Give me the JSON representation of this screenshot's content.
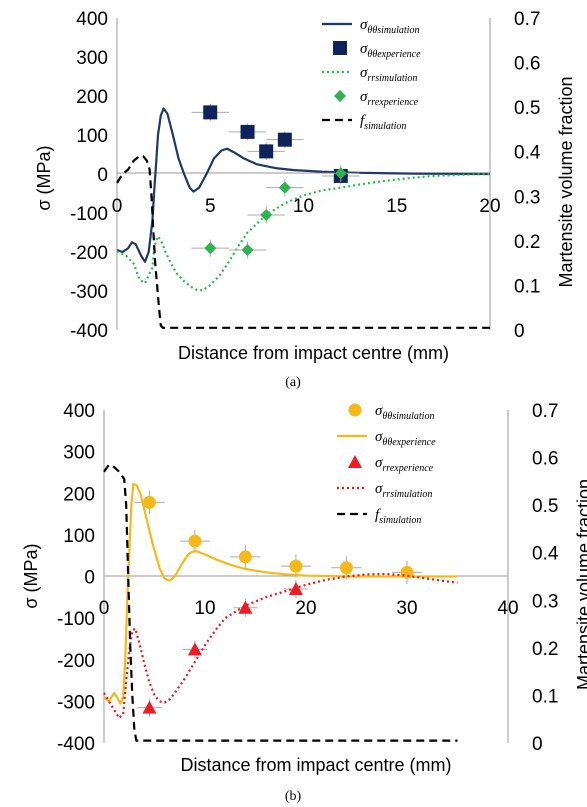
{
  "chart_data": [
    {
      "panel": "(a)",
      "type": "line",
      "xlabel": "Distance from impact centre (mm)",
      "ylabel_left": "σ (MPa)",
      "ylabel_right": "Martensite volume fraction",
      "xlim": [
        0,
        20
      ],
      "ylim_left": [
        -400,
        400
      ],
      "ylim_right": [
        0,
        0.7
      ],
      "x_ticks": [
        0,
        5,
        10,
        15,
        20
      ],
      "y_ticks_left": [
        400,
        300,
        200,
        100,
        0,
        -100,
        -200,
        -300,
        -400
      ],
      "y_ticks_right": [
        0.7,
        0.6,
        0.5,
        0.4,
        0.3,
        0.2,
        0.1,
        0
      ],
      "legend_position": "top-right",
      "series": [
        {
          "name_main": "σ",
          "name_sub": "θθsimulation",
          "kind": "line",
          "axis": "left",
          "color": "#1f3864",
          "dash": "",
          "points": [
            [
              0,
              -195
            ],
            [
              0.3,
              -200
            ],
            [
              0.6,
              -190
            ],
            [
              0.8,
              -175
            ],
            [
              1.0,
              -180
            ],
            [
              1.3,
              -210
            ],
            [
              1.5,
              -225
            ],
            [
              1.7,
              -200
            ],
            [
              1.9,
              -120
            ],
            [
              2.0,
              -40
            ],
            [
              2.1,
              30
            ],
            [
              2.2,
              100
            ],
            [
              2.35,
              150
            ],
            [
              2.5,
              168
            ],
            [
              2.7,
              155
            ],
            [
              3.0,
              100
            ],
            [
              3.3,
              40
            ],
            [
              3.6,
              0
            ],
            [
              3.9,
              -35
            ],
            [
              4.1,
              -45
            ],
            [
              4.4,
              -35
            ],
            [
              4.8,
              0
            ],
            [
              5.2,
              40
            ],
            [
              5.6,
              60
            ],
            [
              5.9,
              65
            ],
            [
              6.3,
              55
            ],
            [
              6.8,
              40
            ],
            [
              7.5,
              25
            ],
            [
              8.5,
              15
            ],
            [
              9.5,
              10
            ],
            [
              11,
              6
            ],
            [
              13,
              3
            ],
            [
              16,
              1
            ],
            [
              20,
              0
            ]
          ]
        },
        {
          "name_main": "σ",
          "name_sub": "θθexperience",
          "kind": "square",
          "axis": "left",
          "color": "#0d2359",
          "points": [
            [
              5,
              158
            ],
            [
              7,
              108
            ],
            [
              8,
              58
            ],
            [
              9,
              88
            ],
            [
              12,
              -5
            ]
          ],
          "xerr": [
            1,
            1,
            1,
            1,
            1
          ],
          "yerr": [
            22,
            22,
            22,
            22,
            22
          ]
        },
        {
          "name_main": "σ",
          "name_sub": "rrsimulation",
          "kind": "line",
          "axis": "left",
          "color": "#2db84a",
          "dash": "2 3",
          "points": [
            [
              0,
              -198
            ],
            [
              0.5,
              -210
            ],
            [
              0.9,
              -230
            ],
            [
              1.2,
              -270
            ],
            [
              1.5,
              -280
            ],
            [
              1.7,
              -260
            ],
            [
              1.9,
              -240
            ],
            [
              2.0,
              -190
            ],
            [
              2.1,
              -170
            ],
            [
              2.2,
              -160
            ],
            [
              2.4,
              -175
            ],
            [
              2.6,
              -200
            ],
            [
              2.9,
              -230
            ],
            [
              3.2,
              -255
            ],
            [
              3.6,
              -275
            ],
            [
              4.0,
              -290
            ],
            [
              4.3,
              -298
            ],
            [
              4.6,
              -298
            ],
            [
              5.0,
              -285
            ],
            [
              5.5,
              -260
            ],
            [
              6.0,
              -225
            ],
            [
              6.5,
              -185
            ],
            [
              7.0,
              -150
            ],
            [
              8.0,
              -105
            ],
            [
              9.0,
              -75
            ],
            [
              10,
              -55
            ],
            [
              11,
              -42
            ],
            [
              12,
              -35
            ],
            [
              13,
              -27
            ],
            [
              14,
              -20
            ],
            [
              15,
              -14
            ],
            [
              16,
              -9
            ],
            [
              17,
              -5
            ],
            [
              18,
              -3
            ],
            [
              19,
              -1
            ],
            [
              20,
              0
            ]
          ]
        },
        {
          "name_main": "σ",
          "name_sub": "rrexperience",
          "kind": "diamond",
          "axis": "left",
          "color": "#2fb34e",
          "points": [
            [
              5,
              -190
            ],
            [
              7,
              -195
            ],
            [
              8,
              -105
            ],
            [
              9,
              -35
            ],
            [
              12,
              2
            ]
          ],
          "xerr": [
            1,
            1,
            1,
            1,
            1
          ],
          "yerr": [
            22,
            22,
            22,
            22,
            22
          ]
        },
        {
          "name_main": "f",
          "name_sub": "simulation",
          "kind": "line",
          "axis": "right",
          "color": "#000000",
          "dash": "8 5",
          "points": [
            [
              0,
              0.33
            ],
            [
              0.3,
              0.35
            ],
            [
              0.6,
              0.36
            ],
            [
              0.9,
              0.38
            ],
            [
              1.2,
              0.39
            ],
            [
              1.4,
              0.39
            ],
            [
              1.6,
              0.38
            ],
            [
              1.75,
              0.36
            ],
            [
              1.85,
              0.3
            ],
            [
              1.95,
              0.22
            ],
            [
              2.05,
              0.15
            ],
            [
              2.15,
              0.1
            ],
            [
              2.25,
              0.05
            ],
            [
              2.35,
              0.01
            ],
            [
              2.45,
              0.005
            ],
            [
              3,
              0.005
            ],
            [
              5,
              0.005
            ],
            [
              10,
              0.005
            ],
            [
              20,
              0.005
            ]
          ]
        }
      ],
      "caption": "(a)"
    },
    {
      "panel": "(b)",
      "type": "line",
      "xlabel": "Distance from impact centre (mm)",
      "ylabel_left": "σ (MPa)",
      "ylabel_right": "Martensite volume fraction",
      "xlim": [
        0,
        40
      ],
      "ylim_left": [
        -400,
        400
      ],
      "ylim_right": [
        0,
        0.7
      ],
      "x_ticks": [
        0,
        10,
        20,
        30,
        40
      ],
      "y_ticks_left": [
        400,
        300,
        200,
        100,
        0,
        -100,
        -200,
        -300,
        -400
      ],
      "y_ticks_right": [
        0.7,
        0.6,
        0.5,
        0.4,
        0.3,
        0.2,
        0.1,
        0
      ],
      "legend_position": "top-right",
      "series": [
        {
          "name_main": "σ",
          "name_sub": "θθsimulation",
          "kind": "circle",
          "axis": "left",
          "color": "#f6b91a",
          "points": [
            [
              4.5,
              178
            ],
            [
              9,
              85
            ],
            [
              14,
              47
            ],
            [
              19,
              25
            ],
            [
              24,
              21
            ],
            [
              30,
              10
            ]
          ],
          "xerr": [
            1.5,
            1.5,
            1.5,
            1.5,
            1.5,
            1.5
          ],
          "yerr": [
            28,
            28,
            28,
            28,
            28,
            28
          ]
        },
        {
          "name_main": "σ",
          "name_sub": "θθexperience",
          "kind": "line",
          "axis": "left",
          "color": "#f6b91a",
          "dash": "",
          "points": [
            [
              0,
              -290
            ],
            [
              0.5,
              -300
            ],
            [
              1.0,
              -280
            ],
            [
              1.3,
              -290
            ],
            [
              1.6,
              -305
            ],
            [
              1.9,
              -290
            ],
            [
              2.1,
              -200
            ],
            [
              2.3,
              -60
            ],
            [
              2.5,
              60
            ],
            [
              2.7,
              170
            ],
            [
              2.9,
              222
            ],
            [
              3.2,
              220
            ],
            [
              3.6,
              200
            ],
            [
              4.1,
              150
            ],
            [
              4.8,
              80
            ],
            [
              5.5,
              20
            ],
            [
              6.0,
              -5
            ],
            [
              6.5,
              -10
            ],
            [
              7.0,
              0
            ],
            [
              7.7,
              30
            ],
            [
              8.4,
              55
            ],
            [
              9.0,
              62
            ],
            [
              9.8,
              55
            ],
            [
              11,
              42
            ],
            [
              12.5,
              28
            ],
            [
              14,
              18
            ],
            [
              16,
              10
            ],
            [
              18,
              5
            ],
            [
              20,
              2
            ],
            [
              25,
              0
            ],
            [
              30,
              0
            ],
            [
              35,
              0
            ]
          ]
        },
        {
          "name_main": "σ",
          "name_sub": "rrexperience",
          "kind": "triangle",
          "axis": "left",
          "color": "#ef1c24",
          "points": [
            [
              4.5,
              -315
            ],
            [
              9,
              -175
            ],
            [
              14,
              -75
            ],
            [
              19,
              -30
            ]
          ],
          "xerr": [
            1.2,
            1.2,
            1.2,
            1.2
          ],
          "yerr": [
            22,
            22,
            22,
            22
          ]
        },
        {
          "name_main": "σ",
          "name_sub": "rrsimulation",
          "kind": "line",
          "axis": "left",
          "color": "#e8141e",
          "dash": "2 3",
          "points": [
            [
              0,
              -280
            ],
            [
              0.5,
              -300
            ],
            [
              1.0,
              -320
            ],
            [
              1.5,
              -340
            ],
            [
              1.9,
              -330
            ],
            [
              2.2,
              -250
            ],
            [
              2.5,
              -180
            ],
            [
              2.8,
              -130
            ],
            [
              3.1,
              -125
            ],
            [
              3.5,
              -160
            ],
            [
              4.0,
              -210
            ],
            [
              4.5,
              -255
            ],
            [
              5.0,
              -285
            ],
            [
              5.5,
              -300
            ],
            [
              6.0,
              -303
            ],
            [
              6.5,
              -295
            ],
            [
              7.0,
              -280
            ],
            [
              8,
              -245
            ],
            [
              9,
              -205
            ],
            [
              10,
              -165
            ],
            [
              11,
              -130
            ],
            [
              12,
              -100
            ],
            [
              14,
              -70
            ],
            [
              16,
              -50
            ],
            [
              18,
              -35
            ],
            [
              20,
              -20
            ],
            [
              22,
              -8
            ],
            [
              24,
              0
            ],
            [
              26,
              5
            ],
            [
              28,
              6
            ],
            [
              30,
              2
            ],
            [
              32,
              -5
            ],
            [
              34,
              -12
            ],
            [
              35,
              -15
            ]
          ]
        },
        {
          "name_main": "f",
          "name_sub": "simulation",
          "kind": "line",
          "axis": "right",
          "color": "#000000",
          "dash": "8 5",
          "points": [
            [
              0,
              0.57
            ],
            [
              0.5,
              0.585
            ],
            [
              1.0,
              0.58
            ],
            [
              1.5,
              0.57
            ],
            [
              2.0,
              0.555
            ],
            [
              2.2,
              0.5
            ],
            [
              2.4,
              0.35
            ],
            [
              2.6,
              0.2
            ],
            [
              2.8,
              0.1
            ],
            [
              3.0,
              0.03
            ],
            [
              3.2,
              0.005
            ],
            [
              5,
              0.005
            ],
            [
              10,
              0.005
            ],
            [
              20,
              0.005
            ],
            [
              35,
              0.005
            ]
          ]
        }
      ],
      "caption": "(b)"
    }
  ]
}
